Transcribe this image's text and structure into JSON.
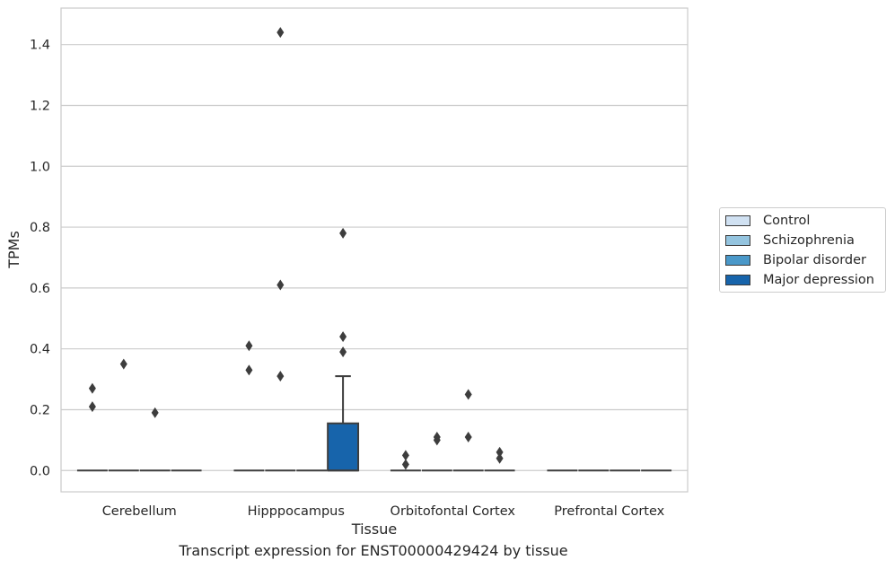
{
  "caption": "Transcript expression for ENST00000429424 by tissue",
  "chart_data": {
    "type": "box",
    "title": "",
    "xlabel": "Tissue",
    "ylabel": "TPMs",
    "ylim": [
      -0.07,
      1.52
    ],
    "yticks": [
      "0.0",
      "0.2",
      "0.4",
      "0.6",
      "0.8",
      "1.0",
      "1.2",
      "1.4"
    ],
    "grid": true,
    "legend_position": "right",
    "categories": [
      "Cerebellum",
      "Hipppocampus",
      "Orbitofontal Cortex",
      "Prefrontal Cortex"
    ],
    "series": [
      {
        "name": "Control",
        "color": "#d0e1f2"
      },
      {
        "name": "Schizophrenia",
        "color": "#94c4df"
      },
      {
        "name": "Bipolar disorder",
        "color": "#4a98c9"
      },
      {
        "name": "Major depression",
        "color": "#1764ab"
      }
    ],
    "boxes": [
      {
        "category": "Cerebellum",
        "series": "Control",
        "q1": 0,
        "median": 0,
        "q3": 0,
        "whisker_low": 0,
        "whisker_high": 0,
        "outliers": [
          0.27,
          0.21
        ]
      },
      {
        "category": "Cerebellum",
        "series": "Schizophrenia",
        "q1": 0,
        "median": 0,
        "q3": 0,
        "whisker_low": 0,
        "whisker_high": 0,
        "outliers": [
          0.35
        ]
      },
      {
        "category": "Cerebellum",
        "series": "Bipolar disorder",
        "q1": 0,
        "median": 0,
        "q3": 0,
        "whisker_low": 0,
        "whisker_high": 0,
        "outliers": [
          0.19
        ]
      },
      {
        "category": "Cerebellum",
        "series": "Major depression",
        "q1": 0,
        "median": 0,
        "q3": 0,
        "whisker_low": 0,
        "whisker_high": 0,
        "outliers": []
      },
      {
        "category": "Hipppocampus",
        "series": "Control",
        "q1": 0,
        "median": 0,
        "q3": 0,
        "whisker_low": 0,
        "whisker_high": 0,
        "outliers": [
          0.41,
          0.33
        ]
      },
      {
        "category": "Hipppocampus",
        "series": "Schizophrenia",
        "q1": 0,
        "median": 0,
        "q3": 0,
        "whisker_low": 0,
        "whisker_high": 0,
        "outliers": [
          1.44,
          0.61,
          0.31
        ]
      },
      {
        "category": "Hipppocampus",
        "series": "Bipolar disorder",
        "q1": 0,
        "median": 0,
        "q3": 0,
        "whisker_low": 0,
        "whisker_high": 0,
        "outliers": []
      },
      {
        "category": "Hipppocampus",
        "series": "Major depression",
        "q1": 0,
        "median": 0,
        "q3": 0.155,
        "whisker_low": 0,
        "whisker_high": 0.31,
        "outliers": [
          0.78,
          0.44,
          0.39
        ]
      },
      {
        "category": "Orbitofontal Cortex",
        "series": "Control",
        "q1": 0,
        "median": 0,
        "q3": 0,
        "whisker_low": 0,
        "whisker_high": 0,
        "outliers": [
          0.05,
          0.02
        ]
      },
      {
        "category": "Orbitofontal Cortex",
        "series": "Schizophrenia",
        "q1": 0,
        "median": 0,
        "q3": 0,
        "whisker_low": 0,
        "whisker_high": 0,
        "outliers": [
          0.11,
          0.1
        ]
      },
      {
        "category": "Orbitofontal Cortex",
        "series": "Bipolar disorder",
        "q1": 0,
        "median": 0,
        "q3": 0,
        "whisker_low": 0,
        "whisker_high": 0,
        "outliers": [
          0.25,
          0.11
        ]
      },
      {
        "category": "Orbitofontal Cortex",
        "series": "Major depression",
        "q1": 0,
        "median": 0,
        "q3": 0,
        "whisker_low": 0,
        "whisker_high": 0,
        "outliers": [
          0.06,
          0.04
        ]
      },
      {
        "category": "Prefrontal Cortex",
        "series": "Control",
        "q1": 0,
        "median": 0,
        "q3": 0,
        "whisker_low": 0,
        "whisker_high": 0,
        "outliers": []
      },
      {
        "category": "Prefrontal Cortex",
        "series": "Schizophrenia",
        "q1": 0,
        "median": 0,
        "q3": 0,
        "whisker_low": 0,
        "whisker_high": 0,
        "outliers": []
      },
      {
        "category": "Prefrontal Cortex",
        "series": "Bipolar disorder",
        "q1": 0,
        "median": 0,
        "q3": 0,
        "whisker_low": 0,
        "whisker_high": 0,
        "outliers": []
      },
      {
        "category": "Prefrontal Cortex",
        "series": "Major depression",
        "q1": 0,
        "median": 0,
        "q3": 0,
        "whisker_low": 0,
        "whisker_high": 0,
        "outliers": []
      }
    ]
  }
}
